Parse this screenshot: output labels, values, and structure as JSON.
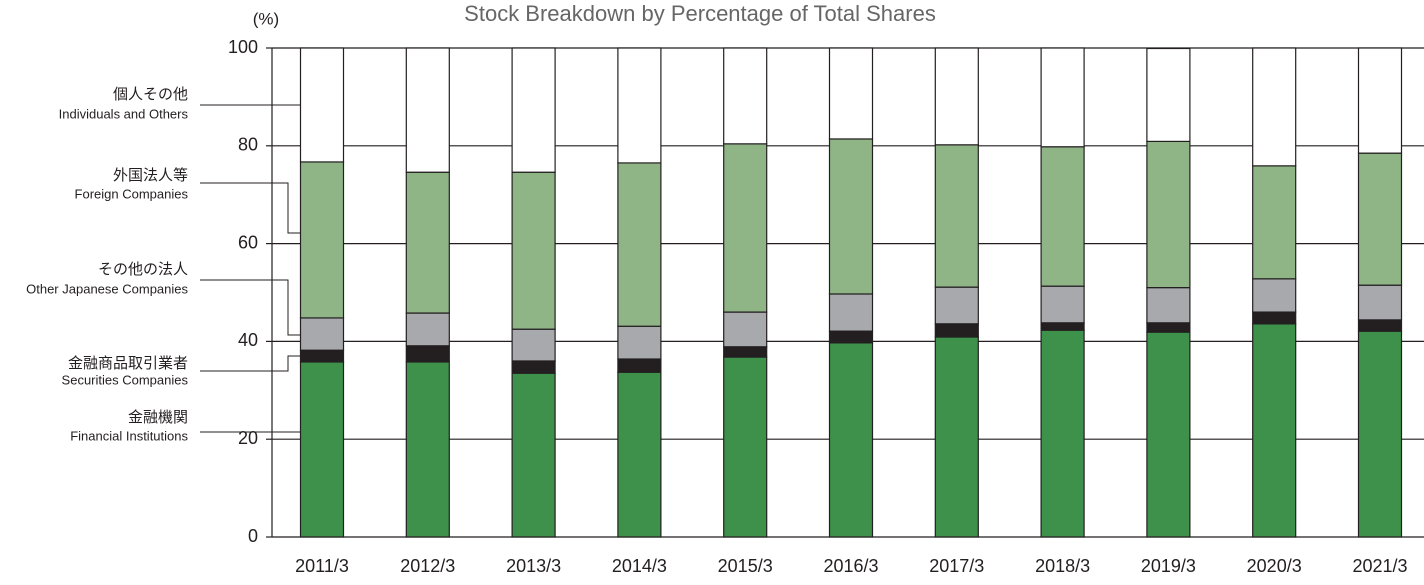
{
  "chart_data": {
    "type": "stacked-bar",
    "title": "Stock Breakdown by Percentage of Total Shares",
    "y_unit": "(%)",
    "categories": [
      "2011/3",
      "2012/3",
      "2013/3",
      "2014/3",
      "2015/3",
      "2016/3",
      "2017/3",
      "2018/3",
      "2019/3",
      "2020/3",
      "2021/3"
    ],
    "series": [
      {
        "name": "金融機関",
        "name_en": "Financial Institutions",
        "color": "#3d914a",
        "values": [
          35.8,
          35.8,
          33.5,
          33.7,
          36.8,
          39.7,
          40.9,
          42.3,
          41.9,
          43.6,
          42.1
        ]
      },
      {
        "name": "金融商品取引業者",
        "name_en": "Securities Companies",
        "color": "#231f20",
        "values": [
          2.4,
          3.3,
          2.5,
          2.7,
          2.1,
          2.4,
          2.7,
          1.5,
          1.9,
          2.4,
          2.3
        ]
      },
      {
        "name": "その他の法人",
        "name_en": "Other Japanese Companies",
        "color": "#a7a9ac",
        "values": [
          6.6,
          6.7,
          6.5,
          6.7,
          7.1,
          7.6,
          7.5,
          7.5,
          7.2,
          6.8,
          7.1
        ]
      },
      {
        "name": "外国法人等",
        "name_en": "Foreign Companies",
        "color": "#8fb587",
        "values": [
          31.9,
          28.8,
          32.1,
          33.4,
          34.4,
          31.7,
          29.1,
          28.5,
          29.9,
          23.1,
          27.0
        ]
      },
      {
        "name": "個人その他",
        "name_en": "Individuals and Others",
        "color": "#ffffff",
        "values": [
          23.3,
          25.4,
          25.4,
          23.5,
          19.6,
          18.6,
          19.8,
          20.2,
          19.0,
          24.1,
          21.5
        ]
      }
    ],
    "ylim": [
      0,
      100
    ],
    "yticks": [
      0,
      20,
      40,
      60,
      80,
      100
    ],
    "grid": true
  }
}
